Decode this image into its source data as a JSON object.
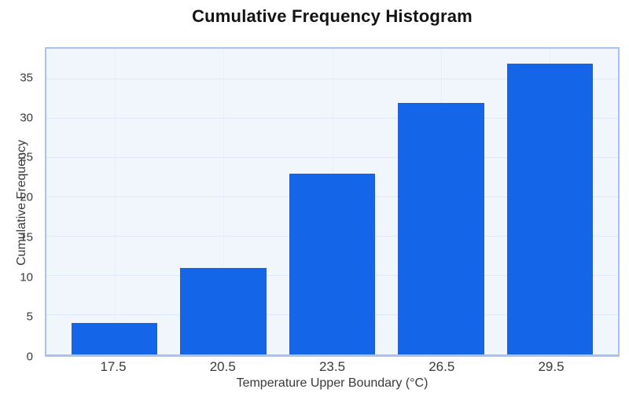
{
  "page": {
    "background": "#ffffff"
  },
  "chart_data": {
    "type": "bar",
    "title": "Cumulative Frequency Histogram",
    "xlabel": "Temperature Upper Boundary (°C)",
    "ylabel": "Cumulative Frequency",
    "categories": [
      "17.5",
      "20.5",
      "23.5",
      "26.5",
      "29.5"
    ],
    "values": [
      4,
      11,
      23,
      32,
      37
    ],
    "yticks": [
      0,
      5,
      10,
      15,
      20,
      25,
      30,
      35
    ],
    "ylim": [
      0,
      38.85
    ],
    "grid": true,
    "legend_position": "none",
    "colors": {
      "bar": "#1565e9",
      "bar_border": "#2a5cd0",
      "plot_background": "#f1f5fc",
      "plot_border": "#a9c3f0",
      "gridline_h": "#dfe9f8",
      "gridline_v": "#e8effb",
      "title_text": "#141414",
      "tick_text": "#3a3a3a"
    }
  }
}
